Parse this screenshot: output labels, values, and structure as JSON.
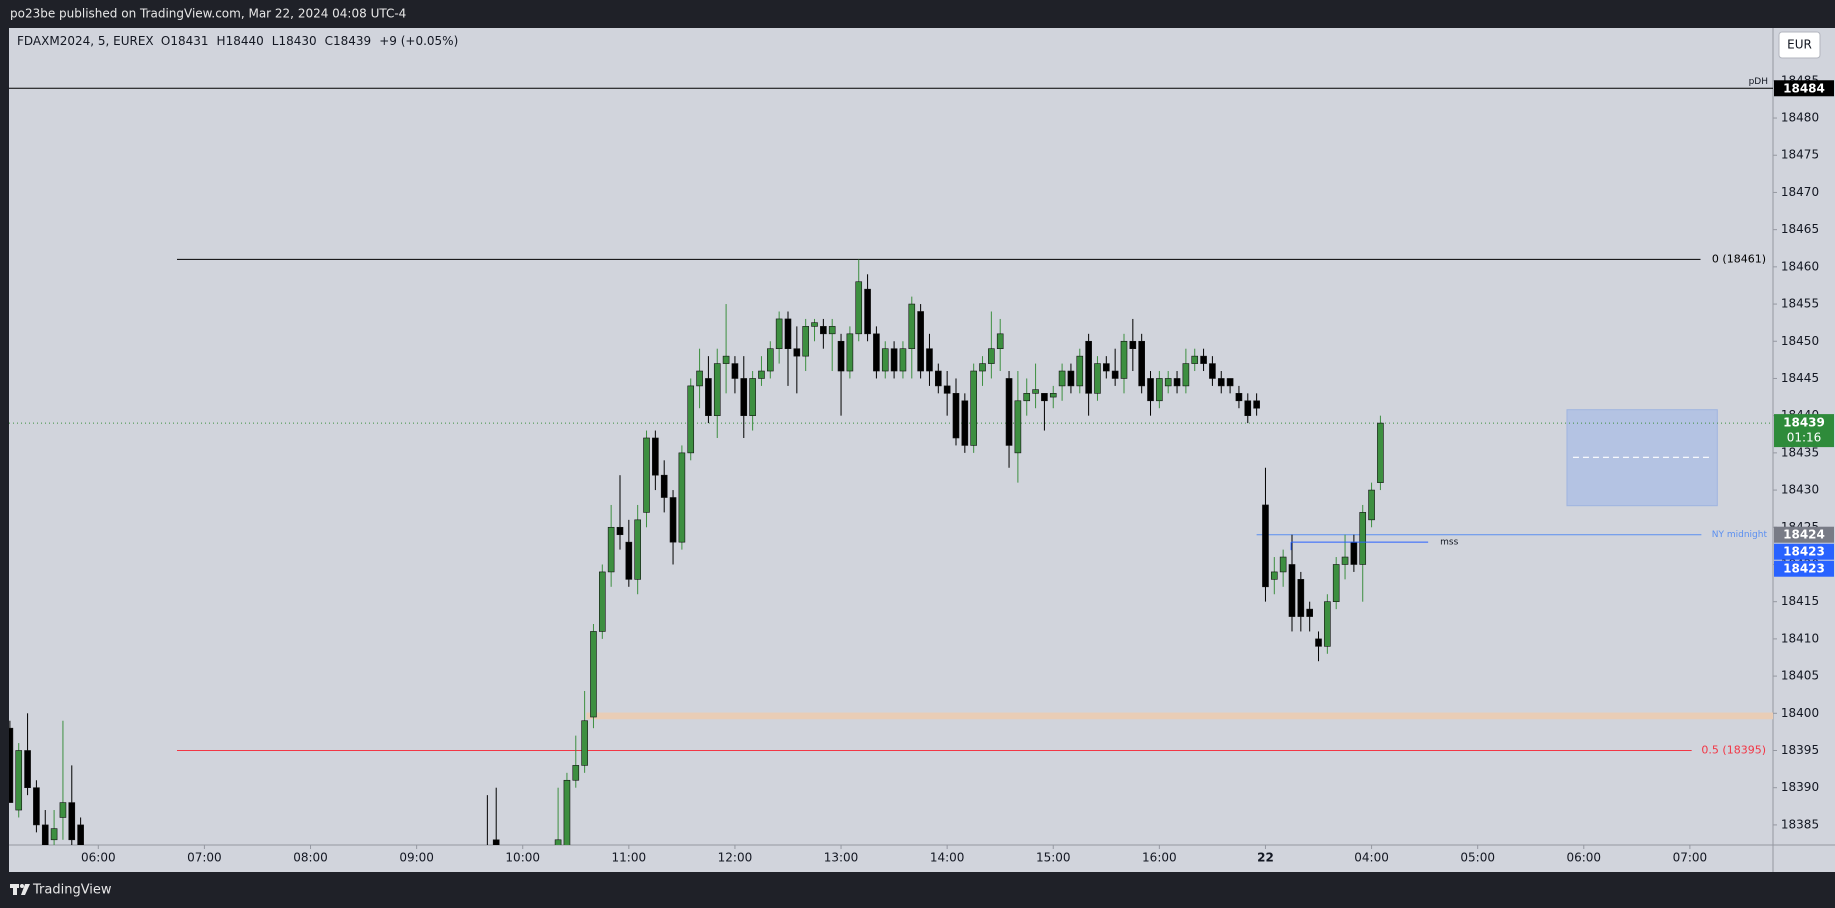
{
  "header": {
    "text": "po23be published on TradingView.com, Mar 22, 2024 04:08 UTC-4"
  },
  "footer": {
    "brand": "TradingView"
  },
  "currency_button": "EUR",
  "chart_data": {
    "type": "candlestick",
    "symbol": "FDAXM2024, 5, EUREX",
    "ohlc_labels": [
      "O",
      "H",
      "L",
      "C"
    ],
    "change_label": "+9 (+0.05%)",
    "countdown": "01:16",
    "up_color": "#3d8f40",
    "down_color": "#000000",
    "grid": false,
    "x": [
      -10,
      -9,
      -8,
      -7,
      -6,
      -5,
      -4,
      -3,
      -2,
      44,
      45,
      52,
      53,
      54,
      55,
      56,
      57,
      58,
      59,
      60,
      61,
      62,
      63,
      64,
      65,
      66,
      67,
      68,
      69,
      70,
      71,
      72,
      73,
      74,
      75,
      76,
      77,
      78,
      79,
      80,
      81,
      82,
      83,
      84,
      85,
      86,
      87,
      88,
      89,
      90,
      91,
      92,
      93,
      94,
      95,
      96,
      97,
      98,
      99,
      100,
      101,
      102,
      103,
      104,
      105,
      106,
      107,
      108,
      109,
      110,
      111,
      112,
      113,
      114,
      115,
      116,
      117,
      118,
      119,
      120,
      121,
      122,
      123,
      124,
      125,
      126,
      127,
      128,
      129,
      130,
      131,
      132,
      133,
      134,
      135,
      136,
      137,
      138,
      139,
      140,
      141,
      142,
      143,
      144,
      145
    ],
    "open": [
      18398,
      18387,
      18395,
      18390,
      18385,
      18383,
      18386,
      18388,
      18385,
      18382,
      18383,
      18380,
      18382,
      18391,
      18393,
      18399.5,
      18411,
      18419,
      18425,
      18423,
      18418,
      18427,
      18437,
      18432,
      18429,
      18423,
      18435,
      18444,
      18445,
      18440,
      18447,
      18447,
      18445,
      18440,
      18445,
      18446,
      18449,
      18453,
      18449,
      18448,
      18452,
      18452,
      18451,
      18450,
      18446,
      18451,
      18457,
      18451,
      18446,
      18449,
      18446,
      18449,
      18454,
      18449,
      18446,
      18444,
      18443,
      18442,
      18436,
      18446,
      18447,
      18449,
      18445,
      18435,
      18442,
      18443,
      18443,
      18442.5,
      18444,
      18446,
      18444,
      18450,
      18443,
      18447,
      18446,
      18445,
      18450,
      18450,
      18445,
      18442,
      18444,
      18445,
      18444,
      18447,
      18448,
      18447,
      18445,
      18445,
      18443,
      18442,
      18442,
      18428,
      18418,
      18419,
      18420,
      18418,
      18414,
      18410,
      18409,
      18415,
      18420,
      18423,
      18420,
      18426,
      18431
    ],
    "high": [
      18399,
      18396,
      18400,
      18391,
      18387,
      18387,
      18399,
      18393,
      18386,
      18389,
      18390,
      18390,
      18392,
      18397,
      18403,
      18412,
      18420,
      18428,
      18432,
      18426,
      18428,
      18438,
      18438,
      18434,
      18430,
      18436,
      18445,
      18449,
      18448,
      18449,
      18455,
      18448,
      18448,
      18446,
      18448,
      18450,
      18454,
      18454,
      18452,
      18453,
      18453,
      18453,
      18453,
      18451,
      18452,
      18461,
      18459,
      18452,
      18450,
      18450,
      18450,
      18456,
      18455,
      18451,
      18447,
      18446,
      18445,
      18443,
      18447,
      18448,
      18454,
      18453,
      18446,
      18446,
      18445,
      18447,
      18443,
      18444,
      18447,
      18447,
      18449,
      18451,
      18448,
      18448,
      18449,
      18451,
      18453,
      18451,
      18446,
      18446,
      18446,
      18446,
      18449,
      18449,
      18449,
      18448,
      18446,
      18445,
      18444,
      18443,
      18443,
      18433,
      18421,
      18422,
      18424,
      18419,
      18415,
      18411,
      18416,
      18421,
      18424,
      18424,
      18428,
      18431,
      18440
    ],
    "low": [
      18388,
      18386,
      18389,
      18384,
      18381,
      18381,
      18383,
      18381,
      18381,
      18380,
      18380,
      18379,
      18381,
      18390,
      18392,
      18398,
      18410,
      18417,
      18422,
      18417,
      18416,
      18425,
      18430,
      18427,
      18420,
      18422,
      18434,
      18441,
      18439,
      18437,
      18443,
      18443,
      18437,
      18438,
      18444,
      18445,
      18447,
      18444,
      18443,
      18446,
      18450,
      18449,
      18446,
      18440,
      18445,
      18450,
      18450,
      18445,
      18445,
      18445,
      18445,
      18445,
      18445,
      18444,
      18443,
      18440,
      18436,
      18435,
      18435,
      18444,
      18445,
      18446,
      18433,
      18431,
      18440,
      18441,
      18438,
      18441,
      18442,
      18443,
      18443,
      18440,
      18442,
      18445,
      18444,
      18443,
      18446,
      18443,
      18440,
      18441,
      18443,
      18443,
      18443,
      18446,
      18446,
      18444,
      18443,
      18443,
      18441,
      18439,
      18440,
      18415,
      18416,
      18417,
      18411,
      18411,
      18411,
      18407,
      18408,
      18414,
      18418,
      18419,
      18415,
      18425,
      18430
    ],
    "close": [
      18388,
      18395,
      18390,
      18385,
      18382,
      18384.5,
      18388,
      18383,
      18382,
      18381,
      18382,
      18383,
      18391,
      18393,
      18399,
      18411,
      18419,
      18425,
      18424,
      18418,
      18426,
      18437,
      18432,
      18429,
      18423,
      18435,
      18444,
      18446,
      18440,
      18447,
      18448,
      18445,
      18440,
      18445,
      18446,
      18449,
      18453,
      18449,
      18448,
      18452,
      18452.5,
      18451,
      18452,
      18446,
      18451,
      18458,
      18451,
      18446,
      18449,
      18446,
      18449,
      18455,
      18446,
      18446,
      18444,
      18443,
      18437,
      18436,
      18446,
      18447,
      18449,
      18451,
      18436,
      18442,
      18443,
      18443.5,
      18442,
      18443,
      18446,
      18444,
      18448,
      18443,
      18447,
      18446,
      18445,
      18450,
      18449,
      18444,
      18442,
      18445,
      18445,
      18444,
      18447,
      18448,
      18447,
      18445,
      18444,
      18444,
      18442,
      18440,
      18441,
      18417,
      18419,
      18421,
      18413,
      18413,
      18413,
      18409,
      18415,
      18420,
      18421,
      18420,
      18427,
      18430,
      18439
    ],
    "xlim": [
      -10.1,
      189.4
    ],
    "xticks": [
      {
        "value": 0,
        "label": "06:00"
      },
      {
        "value": 12,
        "label": "07:00"
      },
      {
        "value": 24,
        "label": "08:00"
      },
      {
        "value": 36,
        "label": "09:00"
      },
      {
        "value": 48,
        "label": "10:00"
      },
      {
        "value": 60,
        "label": "11:00"
      },
      {
        "value": 72,
        "label": "12:00"
      },
      {
        "value": 84,
        "label": "13:00"
      },
      {
        "value": 96,
        "label": "14:00"
      },
      {
        "value": 108,
        "label": "15:00"
      },
      {
        "value": 120,
        "label": "16:00"
      },
      {
        "value": 132,
        "label": "22"
      },
      {
        "value": 144,
        "label": "04:00"
      },
      {
        "value": 156,
        "label": "05:00"
      },
      {
        "value": 168,
        "label": "06:00"
      },
      {
        "value": 180,
        "label": "07:00"
      }
    ],
    "ylim": [
      18382.3,
      18492.1
    ],
    "yticks": [
      18385,
      18390,
      18395,
      18400,
      18405,
      18410,
      18415,
      18420,
      18425,
      18430,
      18435,
      18440,
      18445,
      18450,
      18455,
      18460,
      18465,
      18470,
      18475,
      18480,
      18485
    ],
    "pdh": {
      "label": "pDH",
      "value": 18484,
      "color": "#000000"
    },
    "fib_levels": [
      {
        "label": "0 (18461)",
        "value": 18461,
        "x": [
          8.9,
          181.2
        ],
        "color": "#000000"
      },
      {
        "label": "0.5 (18395)",
        "value": 18395,
        "x": [
          8.9,
          180.2
        ],
        "color": "#f23645"
      }
    ],
    "zone": {
      "from": 18399.2,
      "to": 18400.1,
      "x": 55.2,
      "color": "#e9cdb6"
    },
    "ny_midnight": {
      "label": "NY midnight",
      "value": 18424,
      "x": [
        131,
        181.3
      ],
      "color": "#5b8ff0"
    },
    "mss": {
      "label": "mss",
      "color": "#2962ff",
      "points": [
        {
          "x": 134.9,
          "y": 18423
        },
        {
          "x": 150.4,
          "y": 18423
        }
      ]
    },
    "box": {
      "x": [
        166.1,
        183.1
      ],
      "y": [
        18427.9,
        18440.8
      ],
      "mid": 18434.4,
      "color": "#a9bde6"
    }
  }
}
